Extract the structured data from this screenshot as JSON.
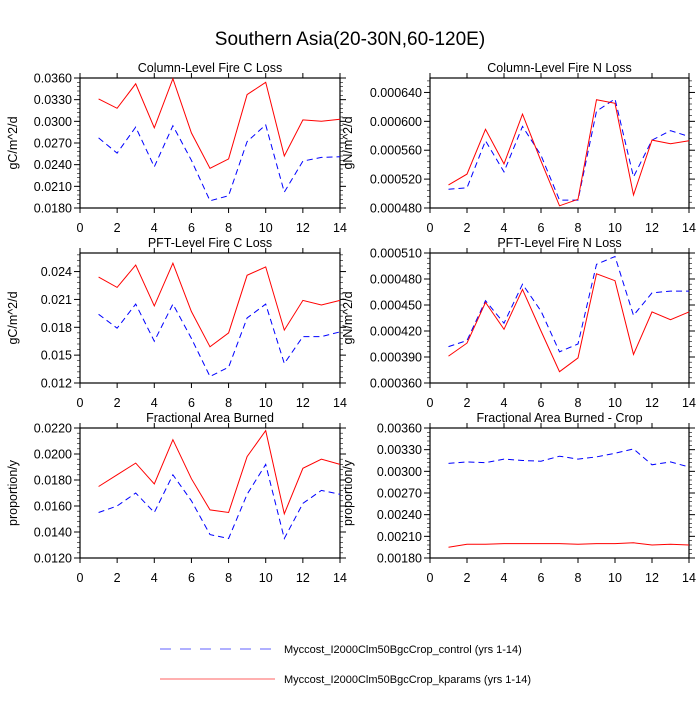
{
  "title": "Southern Asia(20-30N,60-120E)",
  "legend": [
    {
      "label": "Myccost_I2000Clm50BgcCrop_control (yrs 1-14)",
      "color": "#0000ff",
      "dash": true
    },
    {
      "label": "Myccost_I2000Clm50BgcCrop_kparams (yrs 1-14)",
      "color": "#ff0000",
      "dash": false
    }
  ],
  "chart_data": [
    {
      "type": "line",
      "title": "Column-Level Fire C Loss",
      "ylabel": "gC/m^2/d",
      "x": [
        1,
        2,
        3,
        4,
        5,
        6,
        7,
        8,
        9,
        10,
        11,
        12,
        13,
        14
      ],
      "xlim": [
        0,
        14
      ],
      "xticks": [
        "0",
        "2",
        "4",
        "6",
        "8",
        "10",
        "12",
        "14"
      ],
      "ylim": [
        0.018,
        0.036
      ],
      "yticks": [
        0.018,
        0.021,
        0.024,
        0.027,
        0.03,
        0.033,
        0.036
      ],
      "ytick_labels": [
        "0.0180",
        "0.0210",
        "0.0240",
        "0.0270",
        "0.0300",
        "0.0330",
        "0.0360"
      ],
      "series": [
        {
          "name": "Myccost_I2000Clm50BgcCrop_control (yrs 1-14)",
          "color": "#0000ff",
          "dash": true,
          "values": [
            0.0277,
            0.0256,
            0.0292,
            0.0237,
            0.0294,
            0.0246,
            0.019,
            0.0197,
            0.0272,
            0.0295,
            0.0202,
            0.0245,
            0.025,
            0.0251
          ]
        },
        {
          "name": "Myccost_I2000Clm50BgcCrop_kparams (yrs 1-14)",
          "color": "#ff0000",
          "dash": false,
          "values": [
            0.0331,
            0.0318,
            0.0352,
            0.0291,
            0.0359,
            0.0284,
            0.0235,
            0.0248,
            0.0337,
            0.0354,
            0.0252,
            0.0302,
            0.03,
            0.0303
          ]
        }
      ]
    },
    {
      "type": "line",
      "title": "Column-Level Fire N Loss",
      "ylabel": "gN/m^2/d",
      "x": [
        1,
        2,
        3,
        4,
        5,
        6,
        7,
        8,
        9,
        10,
        11,
        12,
        13,
        14
      ],
      "xlim": [
        0,
        14
      ],
      "xticks": [
        "0",
        "2",
        "4",
        "6",
        "8",
        "10",
        "12",
        "14"
      ],
      "ylim": [
        0.00048,
        0.00066
      ],
      "yticks": [
        0.00048,
        0.00052,
        0.00056,
        0.0006,
        0.00064
      ],
      "ytick_labels": [
        "0.000480",
        "0.000520",
        "0.000560",
        "0.000600",
        "0.000640"
      ],
      "series": [
        {
          "name": "Myccost_I2000Clm50BgcCrop_control (yrs 1-14)",
          "color": "#0000ff",
          "dash": true,
          "values": [
            0.000506,
            0.000508,
            0.000573,
            0.00053,
            0.000593,
            0.000553,
            0.000491,
            0.000491,
            0.000614,
            0.000631,
            0.000523,
            0.000574,
            0.000587,
            0.000579
          ]
        },
        {
          "name": "Myccost_I2000Clm50BgcCrop_kparams (yrs 1-14)",
          "color": "#ff0000",
          "dash": false,
          "values": [
            0.000512,
            0.000527,
            0.000589,
            0.000541,
            0.00061,
            0.000545,
            0.000483,
            0.000492,
            0.00063,
            0.000625,
            0.000498,
            0.000574,
            0.000569,
            0.000573
          ]
        }
      ]
    },
    {
      "type": "line",
      "title": "PFT-Level Fire C Loss",
      "ylabel": "gC/m^2/d",
      "x": [
        1,
        2,
        3,
        4,
        5,
        6,
        7,
        8,
        9,
        10,
        11,
        12,
        13,
        14
      ],
      "xlim": [
        0,
        14
      ],
      "xticks": [
        "0",
        "2",
        "4",
        "6",
        "8",
        "10",
        "12",
        "14"
      ],
      "ylim": [
        0.012,
        0.026
      ],
      "yticks": [
        0.012,
        0.015,
        0.018,
        0.021,
        0.024
      ],
      "ytick_labels": [
        "0.012",
        "0.015",
        "0.018",
        "0.021",
        "0.024"
      ],
      "series": [
        {
          "name": "Myccost_I2000Clm50BgcCrop_control (yrs 1-14)",
          "color": "#0000ff",
          "dash": true,
          "values": [
            0.0194,
            0.0179,
            0.0205,
            0.0165,
            0.0205,
            0.0168,
            0.0127,
            0.0137,
            0.019,
            0.0205,
            0.0141,
            0.017,
            0.017,
            0.0175
          ]
        },
        {
          "name": "Myccost_I2000Clm50BgcCrop_kparams (yrs 1-14)",
          "color": "#ff0000",
          "dash": false,
          "values": [
            0.0234,
            0.0223,
            0.0247,
            0.0203,
            0.0249,
            0.0197,
            0.0159,
            0.0174,
            0.0236,
            0.0245,
            0.0177,
            0.0209,
            0.0204,
            0.0209
          ]
        }
      ]
    },
    {
      "type": "line",
      "title": "PFT-Level Fire N Loss",
      "ylabel": "gN/m^2/d",
      "x": [
        1,
        2,
        3,
        4,
        5,
        6,
        7,
        8,
        9,
        10,
        11,
        12,
        13,
        14
      ],
      "xlim": [
        0,
        14
      ],
      "xticks": [
        "0",
        "2",
        "4",
        "6",
        "8",
        "10",
        "12",
        "14"
      ],
      "ylim": [
        0.00036,
        0.00051
      ],
      "yticks": [
        0.00036,
        0.00039,
        0.00042,
        0.00045,
        0.00048,
        0.00051
      ],
      "ytick_labels": [
        "0.000360",
        "0.000390",
        "0.000420",
        "0.000450",
        "0.000480",
        "0.000510"
      ],
      "series": [
        {
          "name": "Myccost_I2000Clm50BgcCrop_control (yrs 1-14)",
          "color": "#0000ff",
          "dash": true,
          "values": [
            0.000402,
            0.000409,
            0.000455,
            0.000429,
            0.000474,
            0.000443,
            0.000396,
            0.000405,
            0.000497,
            0.000506,
            0.000438,
            0.000464,
            0.000466,
            0.000466
          ]
        },
        {
          "name": "Myccost_I2000Clm50BgcCrop_kparams (yrs 1-14)",
          "color": "#ff0000",
          "dash": false,
          "values": [
            0.000391,
            0.000406,
            0.000453,
            0.000422,
            0.000468,
            0.00042,
            0.000373,
            0.000389,
            0.000486,
            0.000478,
            0.000393,
            0.000442,
            0.000433,
            0.000442
          ]
        }
      ]
    },
    {
      "type": "line",
      "title": "Fractional Area Burned",
      "ylabel": "proportion/y",
      "x": [
        1,
        2,
        3,
        4,
        5,
        6,
        7,
        8,
        9,
        10,
        11,
        12,
        13,
        14
      ],
      "xlim": [
        0,
        14
      ],
      "xticks": [
        "0",
        "2",
        "4",
        "6",
        "8",
        "10",
        "12",
        "14"
      ],
      "ylim": [
        0.012,
        0.022
      ],
      "yticks": [
        0.012,
        0.014,
        0.016,
        0.018,
        0.02,
        0.022
      ],
      "ytick_labels": [
        "0.0120",
        "0.0140",
        "0.0160",
        "0.0180",
        "0.0200",
        "0.0220"
      ],
      "series": [
        {
          "name": "Myccost_I2000Clm50BgcCrop_control (yrs 1-14)",
          "color": "#0000ff",
          "dash": true,
          "values": [
            0.0155,
            0.016,
            0.017,
            0.0155,
            0.0184,
            0.0164,
            0.0138,
            0.0135,
            0.0169,
            0.0192,
            0.0135,
            0.0162,
            0.0172,
            0.0169
          ]
        },
        {
          "name": "Myccost_I2000Clm50BgcCrop_kparams (yrs 1-14)",
          "color": "#ff0000",
          "dash": false,
          "values": [
            0.0175,
            0.0184,
            0.0193,
            0.0177,
            0.0211,
            0.0181,
            0.0157,
            0.0155,
            0.0198,
            0.0218,
            0.0154,
            0.0189,
            0.0196,
            0.0192
          ]
        }
      ]
    },
    {
      "type": "line",
      "title": "Fractional Area Burned - Crop",
      "ylabel": "proportion/y",
      "x": [
        1,
        2,
        3,
        4,
        5,
        6,
        7,
        8,
        9,
        10,
        11,
        12,
        13,
        14
      ],
      "xlim": [
        0,
        14
      ],
      "xticks": [
        "0",
        "2",
        "4",
        "6",
        "8",
        "10",
        "12",
        "14"
      ],
      "ylim": [
        0.0018,
        0.0036
      ],
      "yticks": [
        0.0018,
        0.0021,
        0.0024,
        0.0027,
        0.003,
        0.0033,
        0.0036
      ],
      "ytick_labels": [
        "0.00180",
        "0.00210",
        "0.00240",
        "0.00270",
        "0.00300",
        "0.00330",
        "0.00360"
      ],
      "series": [
        {
          "name": "Myccost_I2000Clm50BgcCrop_control (yrs 1-14)",
          "color": "#0000ff",
          "dash": true,
          "values": [
            0.00311,
            0.00313,
            0.00312,
            0.00317,
            0.00315,
            0.00314,
            0.00321,
            0.00317,
            0.0032,
            0.00325,
            0.00331,
            0.00309,
            0.00313,
            0.00306
          ]
        },
        {
          "name": "Myccost_I2000Clm50BgcCrop_kparams (yrs 1-14)",
          "color": "#ff0000",
          "dash": false,
          "values": [
            0.00195,
            0.00199,
            0.00199,
            0.002,
            0.002,
            0.002,
            0.002,
            0.00199,
            0.002,
            0.002,
            0.00201,
            0.00198,
            0.00199,
            0.00198
          ]
        }
      ]
    }
  ]
}
